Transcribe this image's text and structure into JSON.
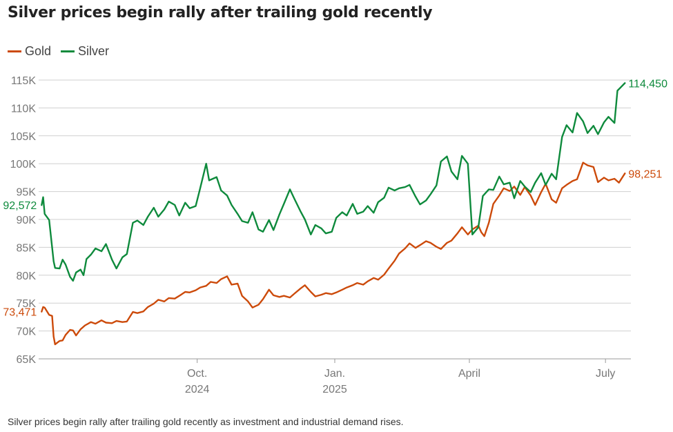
{
  "title": "Silver prices begin rally after trailing gold recently",
  "caption": "Silver prices begin rally after trailing gold recently as investment and industrial demand rises.",
  "colors": {
    "gold": "#cc4a0a",
    "silver": "#0e8a3c",
    "grid": "#cfcfcf",
    "axis": "#999999"
  },
  "legend": [
    {
      "name": "Gold",
      "color": "#cc4a0a"
    },
    {
      "name": "Silver",
      "color": "#0e8a3c"
    }
  ],
  "chart_data": {
    "type": "line",
    "title": "Silver prices begin rally after trailing gold recently",
    "grid": "horizontal",
    "legend_position": "top-left",
    "ylim": [
      65000,
      115000
    ],
    "y_ticks": [
      65000,
      70000,
      75000,
      80000,
      85000,
      90000,
      95000,
      100000,
      105000,
      110000,
      115000
    ],
    "y_tick_labels": [
      "65K",
      "70K",
      "75K",
      "80K",
      "85K",
      "90K",
      "95K",
      "100K",
      "105K",
      "110K",
      "115K"
    ],
    "xlim": [
      "2024-06-17",
      "2025-07-18"
    ],
    "x_ticks": [
      {
        "date": "2024-10-01",
        "lines": [
          "Oct.",
          "2024"
        ]
      },
      {
        "date": "2025-01-01",
        "lines": [
          "Jan.",
          "2025"
        ]
      },
      {
        "date": "2025-04-01",
        "lines": [
          "April"
        ]
      },
      {
        "date": "2025-07-01",
        "lines": [
          "July"
        ]
      }
    ],
    "series": [
      {
        "name": "Gold",
        "color": "#cc4a0a",
        "start_label": "73,471",
        "end_label": "98,251",
        "points": [
          [
            "2024-06-19",
            73471
          ],
          [
            "2024-06-20",
            74300
          ],
          [
            "2024-06-21",
            74200
          ],
          [
            "2024-06-24",
            72900
          ],
          [
            "2024-06-26",
            72700
          ],
          [
            "2024-06-27",
            69000
          ],
          [
            "2024-06-28",
            67600
          ],
          [
            "2024-07-01",
            68200
          ],
          [
            "2024-07-03",
            68300
          ],
          [
            "2024-07-05",
            69300
          ],
          [
            "2024-07-08",
            70200
          ],
          [
            "2024-07-10",
            70100
          ],
          [
            "2024-07-12",
            69200
          ],
          [
            "2024-07-15",
            70300
          ],
          [
            "2024-07-18",
            71000
          ],
          [
            "2024-07-22",
            71600
          ],
          [
            "2024-07-25",
            71300
          ],
          [
            "2024-07-29",
            71900
          ],
          [
            "2024-08-01",
            71500
          ],
          [
            "2024-08-05",
            71400
          ],
          [
            "2024-08-08",
            71800
          ],
          [
            "2024-08-12",
            71600
          ],
          [
            "2024-08-15",
            71700
          ],
          [
            "2024-08-19",
            73400
          ],
          [
            "2024-08-22",
            73200
          ],
          [
            "2024-08-26",
            73500
          ],
          [
            "2024-08-29",
            74300
          ],
          [
            "2024-09-02",
            74900
          ],
          [
            "2024-09-05",
            75600
          ],
          [
            "2024-09-09",
            75300
          ],
          [
            "2024-09-12",
            75900
          ],
          [
            "2024-09-16",
            75800
          ],
          [
            "2024-09-19",
            76300
          ],
          [
            "2024-09-23",
            77000
          ],
          [
            "2024-09-26",
            76900
          ],
          [
            "2024-09-30",
            77300
          ],
          [
            "2024-10-03",
            77800
          ],
          [
            "2024-10-07",
            78100
          ],
          [
            "2024-10-10",
            78800
          ],
          [
            "2024-10-14",
            78600
          ],
          [
            "2024-10-17",
            79300
          ],
          [
            "2024-10-21",
            79800
          ],
          [
            "2024-10-24",
            78300
          ],
          [
            "2024-10-28",
            78500
          ],
          [
            "2024-10-31",
            76300
          ],
          [
            "2024-11-04",
            75300
          ],
          [
            "2024-11-07",
            74200
          ],
          [
            "2024-11-11",
            74700
          ],
          [
            "2024-11-14",
            75700
          ],
          [
            "2024-11-18",
            77400
          ],
          [
            "2024-11-21",
            76400
          ],
          [
            "2024-11-25",
            76100
          ],
          [
            "2024-11-28",
            76300
          ],
          [
            "2024-12-02",
            76000
          ],
          [
            "2024-12-05",
            76700
          ],
          [
            "2024-12-09",
            77600
          ],
          [
            "2024-12-12",
            78200
          ],
          [
            "2024-12-16",
            77000
          ],
          [
            "2024-12-19",
            76200
          ],
          [
            "2024-12-23",
            76500
          ],
          [
            "2024-12-26",
            76800
          ],
          [
            "2024-12-30",
            76600
          ],
          [
            "2025-01-02",
            76900
          ],
          [
            "2025-01-06",
            77400
          ],
          [
            "2025-01-09",
            77800
          ],
          [
            "2025-01-13",
            78200
          ],
          [
            "2025-01-16",
            78600
          ],
          [
            "2025-01-20",
            78300
          ],
          [
            "2025-01-23",
            78900
          ],
          [
            "2025-01-27",
            79500
          ],
          [
            "2025-01-30",
            79200
          ],
          [
            "2025-02-03",
            80100
          ],
          [
            "2025-02-06",
            81200
          ],
          [
            "2025-02-10",
            82600
          ],
          [
            "2025-02-13",
            83900
          ],
          [
            "2025-02-17",
            84800
          ],
          [
            "2025-02-20",
            85700
          ],
          [
            "2025-02-24",
            84900
          ],
          [
            "2025-02-27",
            85400
          ],
          [
            "2025-03-03",
            86100
          ],
          [
            "2025-03-06",
            85800
          ],
          [
            "2025-03-10",
            85100
          ],
          [
            "2025-03-13",
            84700
          ],
          [
            "2025-03-17",
            85800
          ],
          [
            "2025-03-20",
            86200
          ],
          [
            "2025-03-24",
            87500
          ],
          [
            "2025-03-27",
            88600
          ],
          [
            "2025-03-31",
            87300
          ],
          [
            "2025-04-03",
            88200
          ],
          [
            "2025-04-07",
            88900
          ],
          [
            "2025-04-09",
            87700
          ],
          [
            "2025-04-11",
            87000
          ],
          [
            "2025-04-14",
            89400
          ],
          [
            "2025-04-17",
            92800
          ],
          [
            "2025-04-21",
            94300
          ],
          [
            "2025-04-24",
            95600
          ],
          [
            "2025-04-28",
            95100
          ],
          [
            "2025-05-01",
            95900
          ],
          [
            "2025-05-05",
            94400
          ],
          [
            "2025-05-08",
            95800
          ],
          [
            "2025-05-12",
            94300
          ],
          [
            "2025-05-15",
            92600
          ],
          [
            "2025-05-19",
            94900
          ],
          [
            "2025-05-22",
            96400
          ],
          [
            "2025-05-26",
            93600
          ],
          [
            "2025-05-29",
            93000
          ],
          [
            "2025-06-02",
            95600
          ],
          [
            "2025-06-05",
            96200
          ],
          [
            "2025-06-09",
            96900
          ],
          [
            "2025-06-12",
            97200
          ],
          [
            "2025-06-16",
            100200
          ],
          [
            "2025-06-19",
            99700
          ],
          [
            "2025-06-23",
            99400
          ],
          [
            "2025-06-26",
            96700
          ],
          [
            "2025-06-30",
            97500
          ],
          [
            "2025-07-03",
            97000
          ],
          [
            "2025-07-07",
            97300
          ],
          [
            "2025-07-10",
            96600
          ],
          [
            "2025-07-14",
            98251
          ]
        ]
      },
      {
        "name": "Silver",
        "color": "#0e8a3c",
        "start_label": "92,572",
        "end_label": "114,450",
        "points": [
          [
            "2024-06-19",
            92572
          ],
          [
            "2024-06-20",
            94000
          ],
          [
            "2024-06-21",
            91000
          ],
          [
            "2024-06-24",
            89900
          ],
          [
            "2024-06-26",
            85000
          ],
          [
            "2024-06-27",
            82500
          ],
          [
            "2024-06-28",
            81300
          ],
          [
            "2024-07-01",
            81200
          ],
          [
            "2024-07-03",
            82800
          ],
          [
            "2024-07-05",
            81900
          ],
          [
            "2024-07-08",
            79700
          ],
          [
            "2024-07-10",
            79000
          ],
          [
            "2024-07-12",
            80500
          ],
          [
            "2024-07-15",
            81000
          ],
          [
            "2024-07-17",
            80000
          ],
          [
            "2024-07-19",
            82900
          ],
          [
            "2024-07-22",
            83700
          ],
          [
            "2024-07-25",
            84800
          ],
          [
            "2024-07-29",
            84300
          ],
          [
            "2024-08-01",
            85600
          ],
          [
            "2024-08-05",
            82800
          ],
          [
            "2024-08-08",
            81200
          ],
          [
            "2024-08-12",
            83200
          ],
          [
            "2024-08-15",
            83800
          ],
          [
            "2024-08-19",
            89400
          ],
          [
            "2024-08-22",
            89800
          ],
          [
            "2024-08-26",
            89000
          ],
          [
            "2024-08-29",
            90500
          ],
          [
            "2024-09-02",
            92100
          ],
          [
            "2024-09-05",
            90500
          ],
          [
            "2024-09-09",
            91800
          ],
          [
            "2024-09-12",
            93200
          ],
          [
            "2024-09-16",
            92600
          ],
          [
            "2024-09-19",
            90700
          ],
          [
            "2024-09-23",
            93000
          ],
          [
            "2024-09-26",
            92000
          ],
          [
            "2024-09-30",
            92400
          ],
          [
            "2024-10-03",
            95600
          ],
          [
            "2024-10-07",
            100000
          ],
          [
            "2024-10-09",
            97000
          ],
          [
            "2024-10-14",
            97600
          ],
          [
            "2024-10-17",
            95200
          ],
          [
            "2024-10-21",
            94300
          ],
          [
            "2024-10-24",
            92600
          ],
          [
            "2024-10-28",
            91000
          ],
          [
            "2024-10-31",
            89700
          ],
          [
            "2024-11-04",
            89400
          ],
          [
            "2024-11-07",
            91300
          ],
          [
            "2024-11-11",
            88200
          ],
          [
            "2024-11-14",
            87800
          ],
          [
            "2024-11-18",
            89900
          ],
          [
            "2024-11-21",
            88100
          ],
          [
            "2024-11-25",
            90900
          ],
          [
            "2024-11-28",
            92800
          ],
          [
            "2024-12-02",
            95400
          ],
          [
            "2024-12-05",
            93700
          ],
          [
            "2024-12-09",
            91500
          ],
          [
            "2024-12-12",
            90000
          ],
          [
            "2024-12-16",
            87300
          ],
          [
            "2024-12-19",
            89000
          ],
          [
            "2024-12-23",
            88400
          ],
          [
            "2024-12-26",
            87500
          ],
          [
            "2024-12-30",
            87800
          ],
          [
            "2025-01-02",
            90300
          ],
          [
            "2025-01-06",
            91300
          ],
          [
            "2025-01-09",
            90700
          ],
          [
            "2025-01-13",
            92800
          ],
          [
            "2025-01-16",
            91000
          ],
          [
            "2025-01-20",
            91400
          ],
          [
            "2025-01-23",
            92400
          ],
          [
            "2025-01-27",
            91200
          ],
          [
            "2025-01-30",
            93100
          ],
          [
            "2025-02-03",
            93900
          ],
          [
            "2025-02-06",
            95700
          ],
          [
            "2025-02-10",
            95200
          ],
          [
            "2025-02-13",
            95600
          ],
          [
            "2025-02-17",
            95800
          ],
          [
            "2025-02-20",
            96200
          ],
          [
            "2025-02-24",
            94100
          ],
          [
            "2025-02-27",
            92700
          ],
          [
            "2025-03-03",
            93400
          ],
          [
            "2025-03-06",
            94500
          ],
          [
            "2025-03-10",
            96100
          ],
          [
            "2025-03-13",
            100400
          ],
          [
            "2025-03-17",
            101300
          ],
          [
            "2025-03-20",
            98600
          ],
          [
            "2025-03-24",
            97200
          ],
          [
            "2025-03-27",
            101400
          ],
          [
            "2025-03-31",
            100000
          ],
          [
            "2025-04-03",
            87300
          ],
          [
            "2025-04-07",
            88600
          ],
          [
            "2025-04-10",
            94200
          ],
          [
            "2025-04-14",
            95400
          ],
          [
            "2025-04-17",
            95300
          ],
          [
            "2025-04-21",
            97700
          ],
          [
            "2025-04-24",
            96300
          ],
          [
            "2025-04-28",
            96600
          ],
          [
            "2025-05-01",
            93800
          ],
          [
            "2025-05-05",
            96900
          ],
          [
            "2025-05-08",
            95900
          ],
          [
            "2025-05-12",
            94900
          ],
          [
            "2025-05-15",
            96600
          ],
          [
            "2025-05-19",
            98300
          ],
          [
            "2025-05-22",
            96200
          ],
          [
            "2025-05-26",
            98200
          ],
          [
            "2025-05-29",
            97200
          ],
          [
            "2025-06-02",
            104800
          ],
          [
            "2025-06-05",
            106900
          ],
          [
            "2025-06-09",
            105600
          ],
          [
            "2025-06-12",
            109100
          ],
          [
            "2025-06-16",
            107600
          ],
          [
            "2025-06-19",
            105500
          ],
          [
            "2025-06-23",
            106800
          ],
          [
            "2025-06-26",
            105300
          ],
          [
            "2025-06-30",
            107400
          ],
          [
            "2025-07-03",
            108400
          ],
          [
            "2025-07-07",
            107300
          ],
          [
            "2025-07-09",
            113100
          ],
          [
            "2025-07-14",
            114450
          ]
        ]
      }
    ]
  }
}
